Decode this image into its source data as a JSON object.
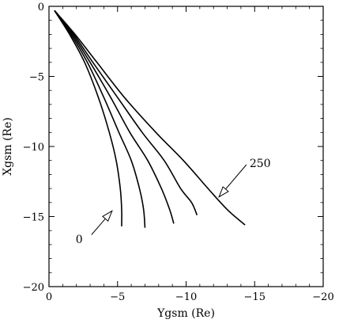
{
  "chart_data": {
    "type": "line",
    "title": "",
    "xlabel": "Ygsm (Re)",
    "ylabel": "Xgsm (Re)",
    "xlim": [
      0,
      -20
    ],
    "ylim": [
      -20,
      0
    ],
    "xticks": [
      0,
      -5,
      -10,
      -15,
      -20
    ],
    "yticks": [
      0,
      -5,
      -10,
      -15,
      -20
    ],
    "grid": false,
    "line_color": "#000000",
    "series": [
      {
        "x": [
          -0.4,
          -1.5,
          -2.6,
          -3.6,
          -4.4,
          -4.9,
          -5.2,
          -5.3,
          -5.3
        ],
        "y": [
          -0.3,
          -2.0,
          -4.0,
          -6.5,
          -9.0,
          -11.0,
          -13.0,
          -14.5,
          -15.7
        ]
      },
      {
        "x": [
          -0.4,
          -1.6,
          -2.8,
          -4.0,
          -5.1,
          -6.0,
          -6.6,
          -6.9,
          -7.0
        ],
        "y": [
          -0.3,
          -2.0,
          -4.0,
          -6.5,
          -9.0,
          -11.0,
          -13.0,
          -14.5,
          -15.8
        ]
      },
      {
        "x": [
          -0.4,
          -1.7,
          -3.0,
          -4.5,
          -5.9,
          -7.2,
          -8.2,
          -8.8,
          -9.1
        ],
        "y": [
          -0.3,
          -2.0,
          -4.0,
          -6.5,
          -9.0,
          -11.0,
          -13.0,
          -14.5,
          -15.5
        ]
      },
      {
        "x": [
          -0.4,
          -1.8,
          -3.2,
          -5.0,
          -6.8,
          -8.4,
          -9.6,
          -10.4,
          -10.8
        ],
        "y": [
          -0.3,
          -2.0,
          -4.0,
          -6.5,
          -9.0,
          -11.0,
          -13.0,
          -14.0,
          -14.9
        ]
      },
      {
        "x": [
          -0.4,
          -1.9,
          -3.5,
          -5.5,
          -7.8,
          -9.8,
          -11.6,
          -13.0,
          -14.3
        ],
        "y": [
          -0.3,
          -2.0,
          -4.0,
          -6.5,
          -9.0,
          -11.0,
          -13.0,
          -14.5,
          -15.6
        ]
      }
    ],
    "annotations": [
      {
        "text": "0",
        "x": -2.2,
        "y": -16.6,
        "arrow_from": [
          -3.1,
          -16.3
        ],
        "arrow_to": [
          -4.6,
          -14.6
        ]
      },
      {
        "text": "250",
        "x": -15.4,
        "y": -11.2,
        "arrow_from": [
          -14.4,
          -11.3
        ],
        "arrow_to": [
          -12.4,
          -13.6
        ]
      }
    ]
  }
}
